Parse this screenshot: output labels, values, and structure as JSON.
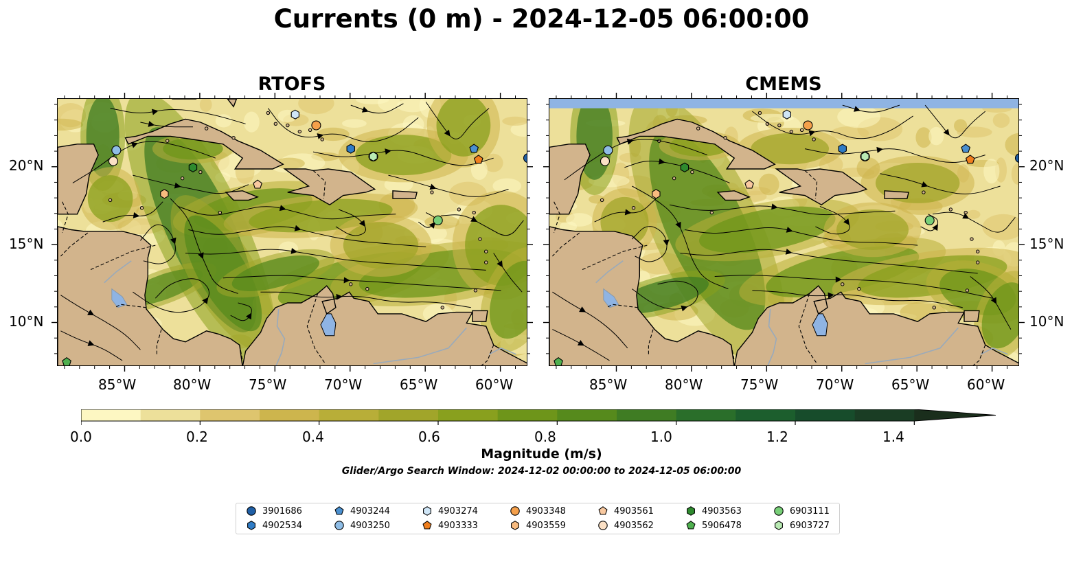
{
  "title": "Currents (0 m) - 2024-12-05 06:00:00",
  "panels": [
    {
      "title": "RTOFS"
    },
    {
      "title": "CMEMS"
    }
  ],
  "lon_ticks": [
    "85°W",
    "80°W",
    "75°W",
    "70°W",
    "65°W",
    "60°W"
  ],
  "lat_ticks": [
    "20°N",
    "15°N",
    "10°N"
  ],
  "extent": {
    "lon": [
      -89.5,
      -58.2
    ],
    "lat": [
      7.2,
      24.4
    ]
  },
  "colorbar": {
    "label": "Magnitude (m/s)",
    "min": 0.0,
    "max": 1.5,
    "extend": "max",
    "ticks": [
      "0.0",
      "0.2",
      "0.4",
      "0.6",
      "0.8",
      "1.0",
      "1.2",
      "1.4"
    ],
    "colors": [
      "#fdf7c2",
      "#ede09a",
      "#dec56e",
      "#cdb54d",
      "#b8ae38",
      "#a1a52a",
      "#89a01e",
      "#6e951a",
      "#568a1c",
      "#3f7c23",
      "#2a6e2a",
      "#1c5e2d",
      "#174c2b",
      "#1a3d24",
      "#1a2e1c"
    ]
  },
  "search_window": "Glider/Argo Search Window: 2024-12-02 00:00:00 to 2024-12-05 06:00:00",
  "colors": {
    "land": "#d2b48c",
    "water": "#8fb4e3",
    "rivers": "#99aabb"
  },
  "legend": [
    {
      "label": "3901686",
      "marker": "circle",
      "color": "#1f5fa6"
    },
    {
      "label": "4902534",
      "marker": "hexagon",
      "color": "#2f7cc6"
    },
    {
      "label": "4903244",
      "marker": "pentagon",
      "color": "#4a90d0"
    },
    {
      "label": "4903250",
      "marker": "circle",
      "color": "#8fbde6"
    },
    {
      "label": "4903274",
      "marker": "hexagon",
      "color": "#cfe6f7"
    },
    {
      "label": "4903333",
      "marker": "pentagon",
      "color": "#f07f1e"
    },
    {
      "label": "4903348",
      "marker": "circle",
      "color": "#f5a04b"
    },
    {
      "label": "4903559",
      "marker": "hexagon",
      "color": "#f8bb7f"
    },
    {
      "label": "4903561",
      "marker": "pentagon",
      "color": "#f9c9a0"
    },
    {
      "label": "4903562",
      "marker": "circle",
      "color": "#fbe0c5"
    },
    {
      "label": "4903563",
      "marker": "hexagon",
      "color": "#2e8a2e"
    },
    {
      "label": "5906478",
      "marker": "pentagon",
      "color": "#4fb04f"
    },
    {
      "label": "6903111",
      "marker": "circle",
      "color": "#78cf78"
    },
    {
      "label": "6903727",
      "marker": "hexagon",
      "color": "#b9eab3"
    }
  ],
  "platforms": [
    {
      "id": "3901686",
      "lon": -58.2,
      "lat": 20.6,
      "cmems_lon": -58.2,
      "cmems_lat": 20.6
    },
    {
      "id": "4902534",
      "lon": -70.0,
      "lat": 21.2,
      "cmems_lon": -70.0,
      "cmems_lat": 21.2
    },
    {
      "id": "4903244",
      "lon": -61.8,
      "lat": 21.2,
      "cmems_lon": -61.8,
      "cmems_lat": 21.2
    },
    {
      "id": "4903250",
      "lon": -85.6,
      "lat": 21.1,
      "cmems_lon": -85.6,
      "cmems_lat": 21.1
    },
    {
      "id": "4903274",
      "lon": -73.7,
      "lat": 23.4,
      "cmems_lon": -73.7,
      "cmems_lat": 23.4
    },
    {
      "id": "4903333",
      "lon": -61.5,
      "lat": 20.5,
      "cmems_lon": -61.5,
      "cmems_lat": 20.5
    },
    {
      "id": "4903348",
      "lon": -72.3,
      "lat": 22.7,
      "cmems_lon": -72.3,
      "cmems_lat": 22.7
    },
    {
      "id": "4903559",
      "lon": -82.4,
      "lat": 18.3,
      "cmems_lon": -82.4,
      "cmems_lat": 18.3
    },
    {
      "id": "4903561",
      "lon": -76.2,
      "lat": 18.9,
      "cmems_lon": -76.2,
      "cmems_lat": 18.9
    },
    {
      "id": "4903562",
      "lon": -85.8,
      "lat": 20.4,
      "cmems_lon": -85.8,
      "cmems_lat": 20.4
    },
    {
      "id": "4903563",
      "lon": -80.5,
      "lat": 20.0,
      "cmems_lon": -80.5,
      "cmems_lat": 20.0
    },
    {
      "id": "5906478",
      "lon": -88.9,
      "lat": 7.5,
      "cmems_lon": -88.9,
      "cmems_lat": 7.5
    },
    {
      "id": "6903111",
      "lon": -68.5,
      "lat": 20.7,
      "cmems_lon": -68.5,
      "cmems_lat": 20.7
    },
    {
      "id": "6903111b",
      "lon": -64.2,
      "lat": 16.6,
      "cmems_lon": -64.2,
      "cmems_lat": 16.6
    },
    {
      "id": "6903727",
      "lon": -68.5,
      "lat": 20.7,
      "cmems_lon": -68.5,
      "cmems_lat": 20.7
    }
  ]
}
